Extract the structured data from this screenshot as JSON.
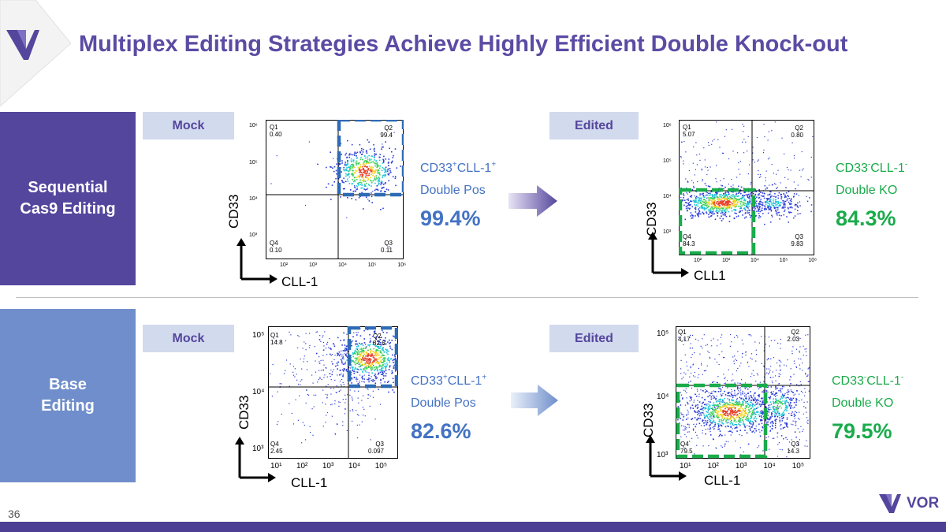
{
  "title": "Multiplex Editing Strategies Achieve Highly Efficient Double Knock-out",
  "slide_number": "36",
  "logo_text": "VOR",
  "rows": [
    {
      "label_line1": "Sequential",
      "label_line2": "Cas9 Editing"
    },
    {
      "label_line1": "Base",
      "label_line2": "Editing"
    }
  ],
  "tags": {
    "mock": "Mock",
    "edited": "Edited"
  },
  "sequential": {
    "mock_plot": {
      "quadrants": {
        "q1": {
          "name": "Q1",
          "value": "0.40"
        },
        "q2": {
          "name": "Q2",
          "value": "99.4"
        },
        "q3": {
          "name": "Q3",
          "value": "0.11"
        },
        "q4": {
          "name": "Q4",
          "value": "0.10"
        }
      },
      "yticks": [
        "10⁶",
        "10⁵",
        "10⁴",
        "10³"
      ],
      "xticks": [
        "10²",
        "10³",
        "10⁴",
        "10⁵",
        "10⁶"
      ],
      "y_axis": "CD33",
      "x_axis": "CLL-1"
    },
    "mock_stat": {
      "marker1": "CD33",
      "sup1": "+",
      "marker2": "CLL-1",
      "sup2": "+",
      "desc": "Double Pos",
      "value": "99.4%"
    },
    "edited_plot": {
      "quadrants": {
        "q1": {
          "name": "Q1",
          "value": "5.07"
        },
        "q2": {
          "name": "Q2",
          "value": "0.80"
        },
        "q3": {
          "name": "Q3",
          "value": "9.83"
        },
        "q4": {
          "name": "Q4",
          "value": "84.3"
        }
      },
      "yticks": [
        "10⁶",
        "10⁵",
        "10⁴",
        "10³"
      ],
      "xticks": [
        "10²",
        "10³",
        "10⁴",
        "10⁵",
        "10⁶"
      ],
      "y_axis": "CD33",
      "x_axis": "CLL1"
    },
    "edited_stat": {
      "marker1": "CD33",
      "sup1": "-",
      "marker2": "CLL-1",
      "sup2": "-",
      "desc": "Double KO",
      "value": "84.3%"
    }
  },
  "base": {
    "mock_plot": {
      "quadrants": {
        "q1": {
          "name": "Q1",
          "value": "14.8"
        },
        "q2": {
          "name": "Q2",
          "value": "82.6"
        },
        "q3": {
          "name": "Q3",
          "value": "0.097"
        },
        "q4": {
          "name": "Q4",
          "value": "2.45"
        }
      },
      "yticks": [
        "10⁵",
        "10⁴",
        "10³"
      ],
      "xticks": [
        "10¹",
        "10²",
        "10³",
        "10⁴",
        "10⁵"
      ],
      "y_axis": "CD33",
      "x_axis": "CLL-1"
    },
    "mock_stat": {
      "marker1": "CD33",
      "sup1": "+",
      "marker2": "CLL-1",
      "sup2": "+",
      "desc": "Double Pos",
      "value": "82.6%"
    },
    "edited_plot": {
      "quadrants": {
        "q1": {
          "name": "Q1",
          "value": "4.17"
        },
        "q2": {
          "name": "Q2",
          "value": "2.03"
        },
        "q3": {
          "name": "Q3",
          "value": "14.3"
        },
        "q4": {
          "name": "Q4",
          "value": "79.5"
        }
      },
      "yticks": [
        "10⁵",
        "10⁴",
        "10³"
      ],
      "xticks": [
        "10¹",
        "10²",
        "10³",
        "10⁴",
        "10⁵"
      ],
      "y_axis": "CD33",
      "x_axis": "CLL-1"
    },
    "edited_stat": {
      "marker1": "CD33",
      "sup1": "-",
      "marker2": "CLL-1",
      "sup2": "-",
      "desc": "Double KO",
      "value": "79.5%"
    }
  },
  "colors": {
    "purple": "#55469d",
    "light_blue": "#6f8ecb",
    "tag_bg": "#d2daee",
    "blue": "#4472c4",
    "green": "#1aab4b"
  }
}
